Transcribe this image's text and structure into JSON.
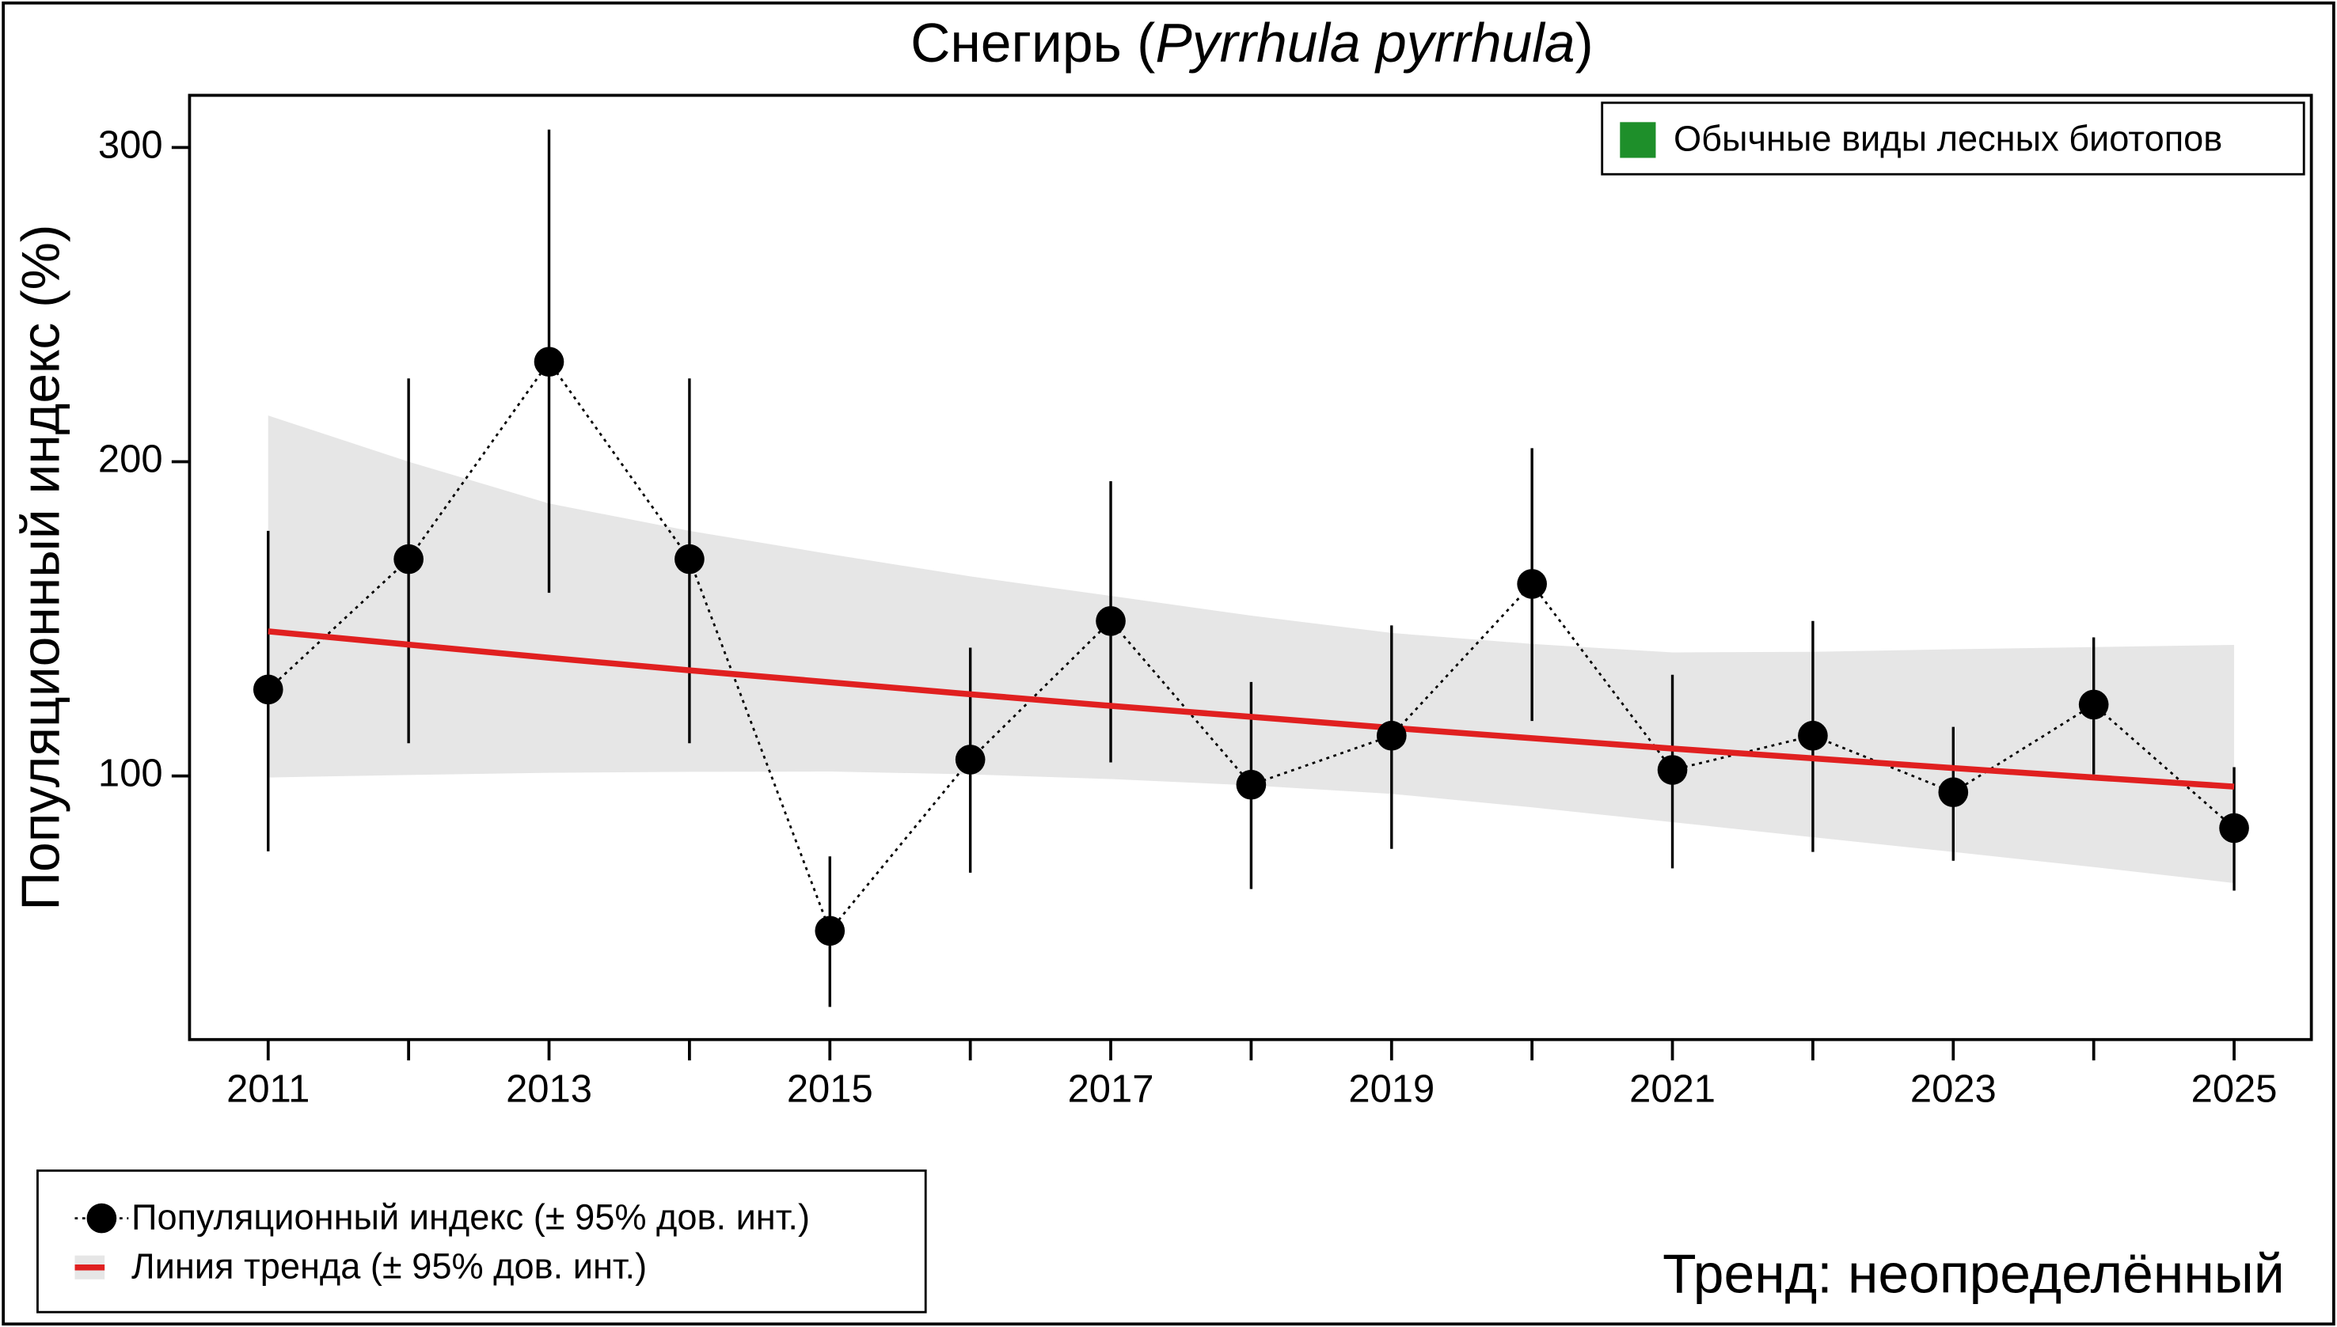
{
  "chart_data": {
    "type": "line",
    "title_parts": [
      "Снегирь (",
      "Pyrrhula pyrrhula",
      ")"
    ],
    "y_label": "Популяционный индекс (%)",
    "x": [
      2011,
      2012,
      2013,
      2014,
      2015,
      2016,
      2017,
      2018,
      2019,
      2020,
      2021,
      2022,
      2023,
      2024,
      2025
    ],
    "series": [
      {
        "name": "Популяционный индекс (± 95% дов. инт.)",
        "color": "#000000",
        "values": [
          127.5,
          169,
          231.8,
          169,
          50.7,
          105.2,
          149.3,
          97.2,
          112.8,
          161.1,
          101.9,
          112.8,
          94.8,
          122.7,
          83.4
        ],
        "lower": [
          76,
          110.4,
          158.3,
          110.4,
          26.5,
          69.2,
          104.3,
          64,
          76.8,
          117.5,
          70.6,
          75.8,
          73,
          100.5,
          63.5
        ],
        "upper": [
          178,
          226.5,
          305.7,
          226.5,
          74.4,
          140.8,
          193.8,
          129.9,
          147.9,
          204.3,
          132.2,
          149.3,
          115.6,
          144.1,
          102.8
        ]
      },
      {
        "name": "Линия тренда (± 95% дов. инт.)",
        "color": "#e02020",
        "band_color": "#e6e6e6",
        "values": [
          146,
          141.8,
          137.6,
          133.6,
          129.8,
          126,
          122.3,
          118.8,
          115.3,
          112,
          108.7,
          105.6,
          102.5,
          99.5,
          96.6
        ],
        "lower": [
          99.5,
          100.3,
          101,
          101.3,
          101.4,
          100.5,
          99,
          97,
          94.3,
          90,
          85.3,
          80.5,
          75.8,
          71,
          65.9
        ],
        "upper": [
          214.7,
          200,
          186.7,
          178,
          170.6,
          163.5,
          157.3,
          151,
          145.5,
          142,
          139.3,
          139.5,
          140.3,
          141,
          141.7
        ]
      }
    ],
    "xlim": [
      2010.44,
      2025.55
    ],
    "xticks": [
      2011,
      2013,
      2015,
      2017,
      2019,
      2021,
      2023,
      2025
    ],
    "ylim": [
      16.1,
      316.6
    ],
    "yticks": [
      100,
      200,
      300
    ],
    "grid": false,
    "group_legend": {
      "label": "Обычные виды лесных биотопов",
      "color": "#1e8f2a"
    },
    "trend_text": "Тренд: неопределённый"
  }
}
